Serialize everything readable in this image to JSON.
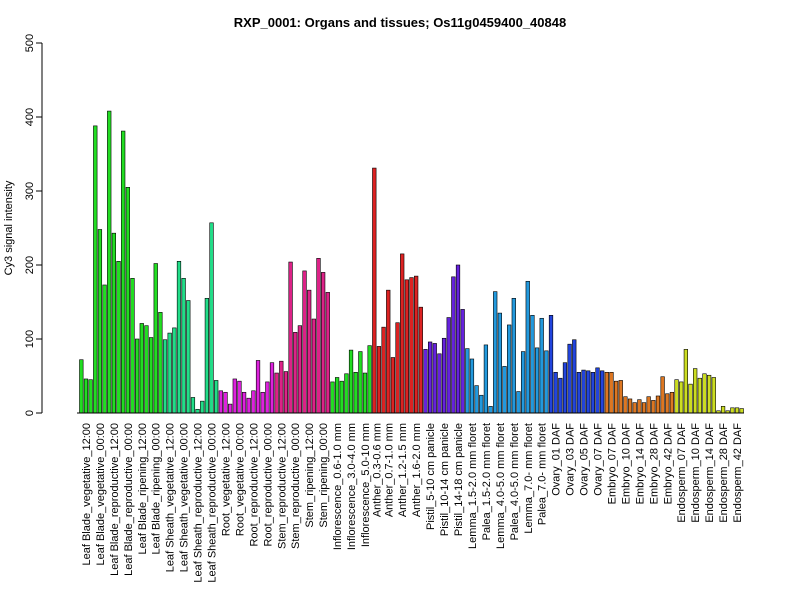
{
  "chart_data": {
    "type": "bar",
    "title": "RXP_0001: Organs and tissues; Os11g0459400_40848",
    "xlabel": "",
    "ylabel": "Cy3 signal intensity",
    "ylim": [
      0,
      500
    ],
    "yticks": [
      0,
      100,
      200,
      300,
      400,
      500
    ],
    "grid": false,
    "legend": "none",
    "categories": [
      "Leaf Blade_vegetative_12:00",
      "Leaf Blade_vegetative_00:00",
      "Leaf Blade_reproductive_12:00",
      "Leaf Blade_reproductive_00:00",
      "Leaf Blade_ripening_12:00",
      "Leaf Blade_ripening_00:00",
      "Leaf Sheath_vegetative_12:00",
      "Leaf Sheath_vegetative_00:00",
      "Leaf Sheath_reproductive_12:00",
      "Leaf Sheath_reproductive_00:00",
      "Root_vegetative_12:00",
      "Root_vegetative_00:00",
      "Root_reproductive_12:00",
      "Root_reproductive_00:00",
      "Stem_reproductive_12:00",
      "Stem_reproductive_00:00",
      "Stem_ripening_12:00",
      "Stem_ripening_00:00",
      "Inflorescence_0.6-1.0 mm",
      "Inflorescence_3.0-4.0 mm",
      "Inflorescence_5.0-10 mm",
      "Anther_0.3-0.6 mm",
      "Anther_0.7-1.0 mm",
      "Anther_1.2-1.5 mm",
      "Anther_1.6-2.0 mm",
      "Pistil_5-10 cm panicle",
      "Pistil_10-14 cm panicle",
      "Pistil_14-18 cm panicle",
      "Lemma_1.5-2.0 mm floret",
      "Palea_1.5-2.0 mm floret",
      "Lemma_4.0-5.0 mm floret",
      "Palea_4.0-5.0 mm floret",
      "Lemma_7.0- mm floret",
      "Palea_7.0- mm floret",
      "Ovary_01 DAF",
      "Ovary_03 DAF",
      "Ovary_05 DAF",
      "Ovary_07 DAF",
      "Embryo_07 DAF",
      "Embryo_10 DAF",
      "Embryo_14 DAF",
      "Embryo_28 DAF",
      "Embryo_42 DAF",
      "Endosperm_07 DAF",
      "Endosperm_10 DAF",
      "Endosperm_14 DAF",
      "Endosperm_28 DAF",
      "Endosperm_42 DAF"
    ],
    "groups": [
      {
        "color": "#22dd22",
        "values": [
          72,
          46,
          45
        ]
      },
      {
        "color": "#22dd22",
        "values": [
          388,
          248,
          173
        ]
      },
      {
        "color": "#22dd22",
        "values": [
          408,
          243,
          205
        ]
      },
      {
        "color": "#22dd22",
        "values": [
          381,
          305,
          182
        ]
      },
      {
        "color": "#22dd22",
        "values": [
          100,
          121,
          118
        ]
      },
      {
        "color": "#22dd22",
        "values": [
          102,
          202,
          136
        ]
      },
      {
        "color": "#22dd88",
        "values": [
          99,
          108,
          115
        ]
      },
      {
        "color": "#22dd88",
        "values": [
          205,
          182,
          152
        ]
      },
      {
        "color": "#22dd88",
        "values": [
          21,
          5,
          16
        ]
      },
      {
        "color": "#22dd88",
        "values": [
          155,
          257,
          44
        ]
      },
      {
        "color": "#dd22dd",
        "values": [
          30,
          28,
          12
        ]
      },
      {
        "color": "#dd22dd",
        "values": [
          46,
          43,
          28
        ]
      },
      {
        "color": "#dd22dd",
        "values": [
          20,
          30,
          71
        ]
      },
      {
        "color": "#dd22dd",
        "values": [
          28,
          42,
          68
        ]
      },
      {
        "color": "#dd2288",
        "values": [
          54,
          70,
          56
        ]
      },
      {
        "color": "#dd2288",
        "values": [
          204,
          109,
          118
        ]
      },
      {
        "color": "#dd2288",
        "values": [
          192,
          166,
          127
        ]
      },
      {
        "color": "#dd2288",
        "values": [
          209,
          190,
          163
        ]
      },
      {
        "color": "#22dd22",
        "values": [
          42,
          48,
          43
        ]
      },
      {
        "color": "#22dd22",
        "values": [
          53,
          85,
          55
        ]
      },
      {
        "color": "#22dd22",
        "values": [
          83,
          54,
          91
        ]
      },
      {
        "color": "#dd2222",
        "values": [
          331,
          90
        ]
      },
      {
        "color": "#dd2222",
        "values": [
          116,
          166,
          75
        ]
      },
      {
        "color": "#dd2222",
        "values": [
          122,
          215,
          180
        ]
      },
      {
        "color": "#dd2222",
        "values": [
          183,
          185,
          143
        ]
      },
      {
        "color": "#6622dd",
        "values": [
          86,
          96,
          94
        ]
      },
      {
        "color": "#6622dd",
        "values": [
          80,
          101,
          129
        ]
      },
      {
        "color": "#6622dd",
        "values": [
          184,
          200,
          140
        ]
      },
      {
        "color": "#2299dd",
        "values": [
          87,
          73,
          37
        ]
      },
      {
        "color": "#2299dd",
        "values": [
          24,
          92,
          9
        ]
      },
      {
        "color": "#2299dd",
        "values": [
          164,
          135,
          63
        ]
      },
      {
        "color": "#2299dd",
        "values": [
          119,
          155,
          29
        ]
      },
      {
        "color": "#2299dd",
        "values": [
          83,
          178,
          132
        ]
      },
      {
        "color": "#2299dd",
        "values": [
          88,
          128,
          84
        ]
      },
      {
        "color": "#2244dd",
        "values": [
          132,
          55,
          47
        ]
      },
      {
        "color": "#2244dd",
        "values": [
          68,
          93,
          99
        ]
      },
      {
        "color": "#2244dd",
        "values": [
          55,
          58,
          57
        ]
      },
      {
        "color": "#2244dd",
        "values": [
          55,
          61,
          57
        ]
      },
      {
        "color": "#dd7722",
        "values": [
          55,
          55,
          43
        ]
      },
      {
        "color": "#dd7722",
        "values": [
          44,
          22,
          19
        ]
      },
      {
        "color": "#dd7722",
        "values": [
          14,
          18,
          14
        ]
      },
      {
        "color": "#dd7722",
        "values": [
          22,
          17,
          23
        ]
      },
      {
        "color": "#dd7722",
        "values": [
          49,
          26,
          28
        ]
      },
      {
        "color": "#ccdd22",
        "values": [
          45,
          42,
          86
        ]
      },
      {
        "color": "#ccdd22",
        "values": [
          39,
          60,
          47
        ]
      },
      {
        "color": "#ccdd22",
        "values": [
          53,
          51,
          48
        ]
      },
      {
        "color": "#ccdd22",
        "values": [
          3,
          9,
          3
        ]
      },
      {
        "color": "#ccdd22",
        "values": [
          7,
          7,
          6
        ]
      }
    ]
  }
}
